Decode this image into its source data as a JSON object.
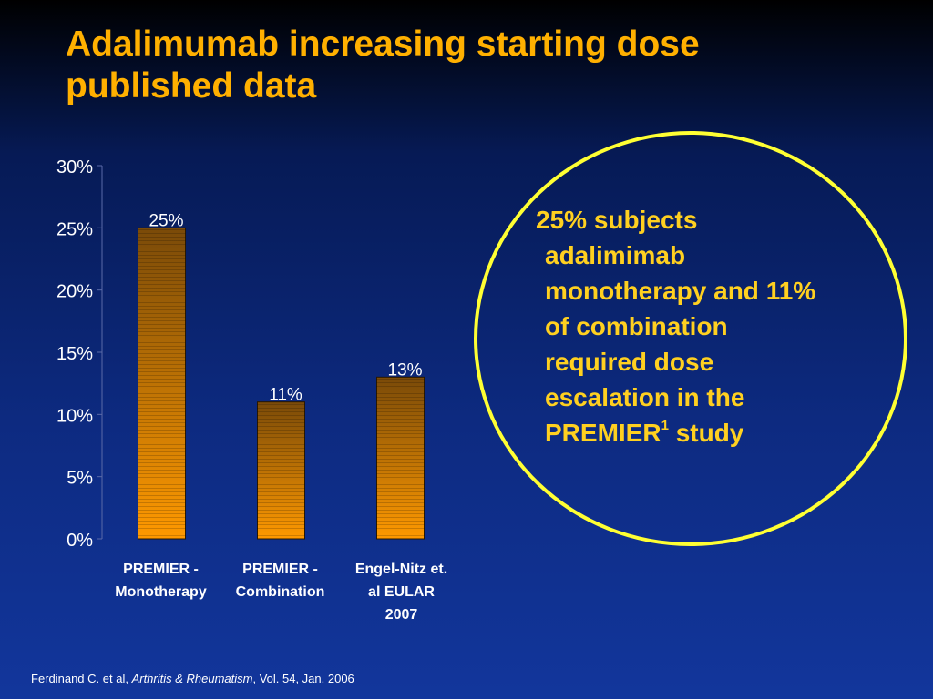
{
  "slide": {
    "title_line1": "Adalimumab increasing starting dose",
    "title_line2": "published data",
    "callout": {
      "line1": "25% subjects",
      "line2": "adalimimab",
      "line3": "monotherapy and 11%",
      "line4": "of combination",
      "line5": "required dose",
      "line6": "escalation in the",
      "line7_main": "PREMIER",
      "line7_sup": "1",
      "line7_end": " study"
    },
    "footnote": {
      "authors": "Ferdinand C. et al, ",
      "journal": "Arthritis & Rheumatism",
      "rest": ", Vol. 54, Jan. 2006"
    }
  },
  "colors": {
    "title": "#ffb000",
    "callout_text": "#ffd020",
    "circle": "#ffff33",
    "bar_bottom": "#ff9900",
    "bar_top": "#7a4a08"
  },
  "chart_data": {
    "type": "bar",
    "categories": [
      [
        "PREMIER -",
        "Monotherapy"
      ],
      [
        "PREMIER -",
        "Combination"
      ],
      [
        "Engel-Nitz et.",
        "al EULAR",
        "2007"
      ]
    ],
    "values": [
      25,
      11,
      13
    ],
    "data_labels": [
      "25%",
      "11%",
      "13%"
    ],
    "ylim": [
      0,
      30
    ],
    "y_ticks": [
      "0%",
      "5%",
      "10%",
      "15%",
      "20%",
      "25%",
      "30%"
    ],
    "y_tick_values": [
      0,
      5,
      10,
      15,
      20,
      25,
      30
    ],
    "grid": false,
    "legend": false
  }
}
